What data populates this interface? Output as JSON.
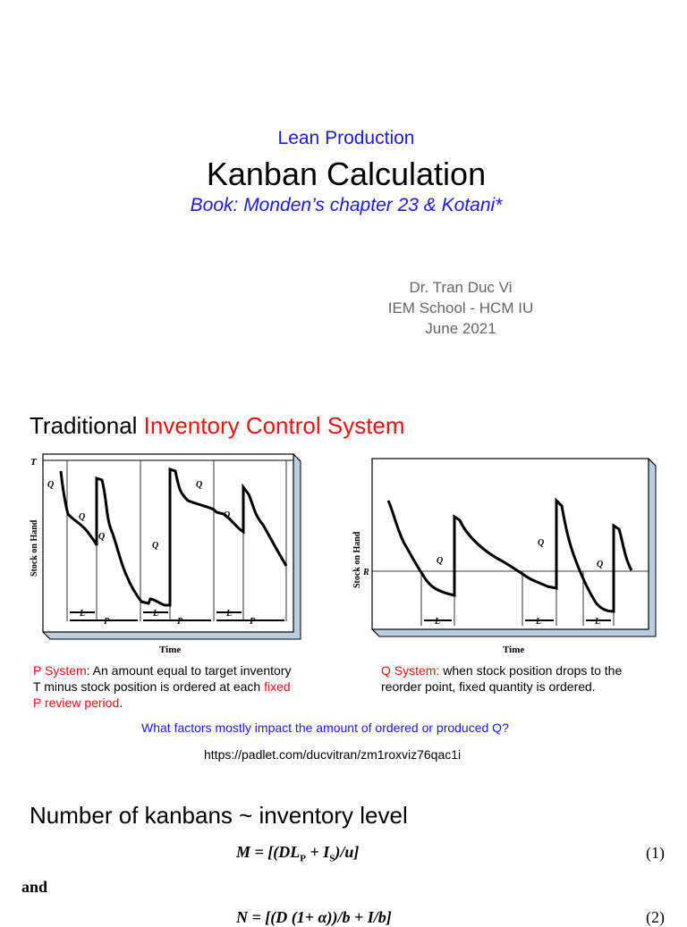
{
  "header": {
    "subtitle": "Lean Production",
    "title": "Kanban Calculation",
    "book": "Book: Monden’s chapter 23 & Kotani*"
  },
  "author": {
    "name": "Dr. Tran Duc Vi",
    "school": "IEM School - HCM IU",
    "date": "June 2021"
  },
  "section1": {
    "heading_black": "Traditional ",
    "heading_red": "Inventory Control System"
  },
  "p_diagram": {
    "t_label": "T",
    "y_label": "Stock on Hand",
    "x_label": "Time",
    "q1_top": "Q",
    "q1_mid": "Q",
    "q2_left": "Q",
    "q2_mid": "Q",
    "q3_top": "Q",
    "q3_mid": "Q",
    "l_label": "L",
    "p_label": "P"
  },
  "q_diagram": {
    "y_label": "Stock on Hand",
    "x_label": "Time",
    "r_label": "R",
    "q_label": "Q",
    "l_label": "L"
  },
  "p_caption": {
    "label": "P System",
    "text1": ": An amount equal to target inventory T minus stock position is ordered at each ",
    "highlight": "fixed P review period",
    "text2": "."
  },
  "q_caption": {
    "label": "Q System: ",
    "text": "when stock position drops to the reorder point, fixed quantity is ordered."
  },
  "question": "What factors mostly impact the amount of ordered or produced Q?",
  "url": "https://padlet.com/ducvitran/zm1roxviz76qac1i",
  "section2": {
    "heading": "Number of kanbans ~ inventory level"
  },
  "formulas": {
    "eq1": "M = [(DL",
    "eq1_sub1": "P",
    "eq1_mid": " + I",
    "eq1_sub2": "S",
    "eq1_end": ")/u]",
    "eq1_no": "(1)",
    "and": "and",
    "eq2": "N = [(D",
    "eq2_rest": " (1+ α))/b + I",
    "eq2_end": "/b]",
    "eq2_no": "(2)"
  }
}
